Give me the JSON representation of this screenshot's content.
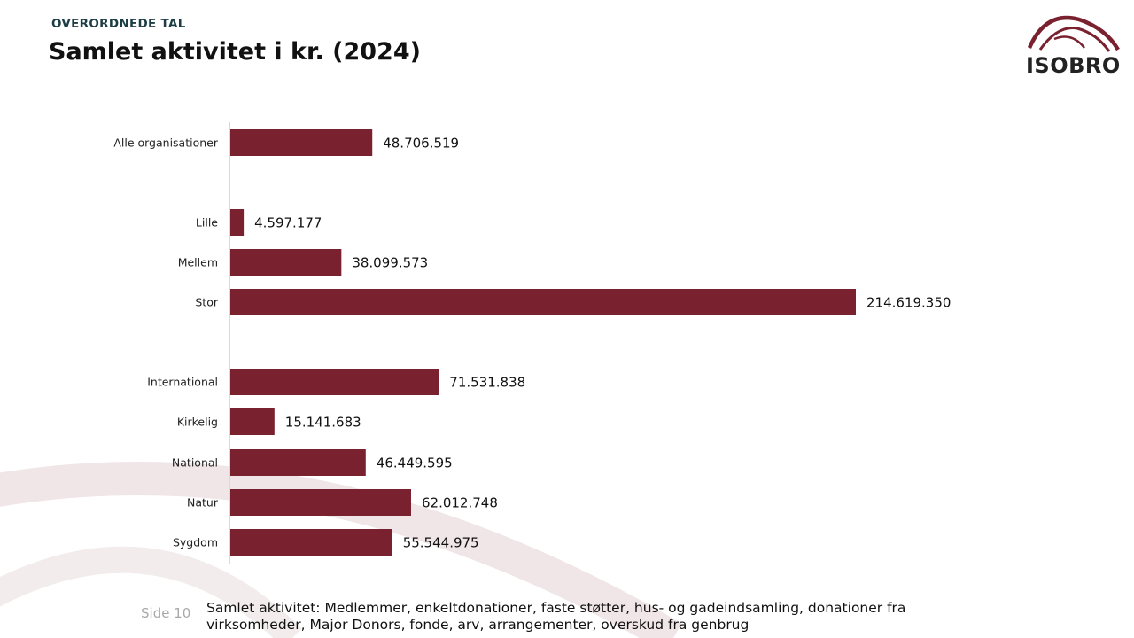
{
  "header": {
    "section": "OVERORDNEDE TAL",
    "title": "Samlet aktivitet i kr. (2024)"
  },
  "logo": {
    "text": "ISOBRO"
  },
  "colors": {
    "bar": "#7a2130",
    "accent": "#7a2130",
    "arc": "#f0e6e7"
  },
  "chart_data": {
    "type": "bar",
    "orientation": "horizontal",
    "title": "Samlet aktivitet i kr. (2024)",
    "categories": [
      "Alle organisationer",
      "Lille",
      "Mellem",
      "Stor",
      "International",
      "Kirkelig",
      "National",
      "Natur",
      "Sygdom"
    ],
    "values": [
      48706519,
      4597177,
      38099573,
      214619350,
      71531838,
      15141683,
      46449595,
      62012748,
      55544975
    ],
    "value_labels": [
      "48.706.519",
      "4.597.177",
      "38.099.573",
      "214.619.350",
      "71.531.838",
      "15.141.683",
      "46.449.595",
      "62.012.748",
      "55.544.975"
    ],
    "xlim": [
      0,
      214619350
    ],
    "grid": false,
    "legend": "none"
  },
  "footer": {
    "page": "Side 10",
    "note": "Samlet aktivitet: Medlemmer, enkeltdonationer, faste støtter, hus- og gadeindsamling, donationer fra virksomheder, Major Donors, fonde, arv, arrangementer, overskud fra genbrug"
  }
}
